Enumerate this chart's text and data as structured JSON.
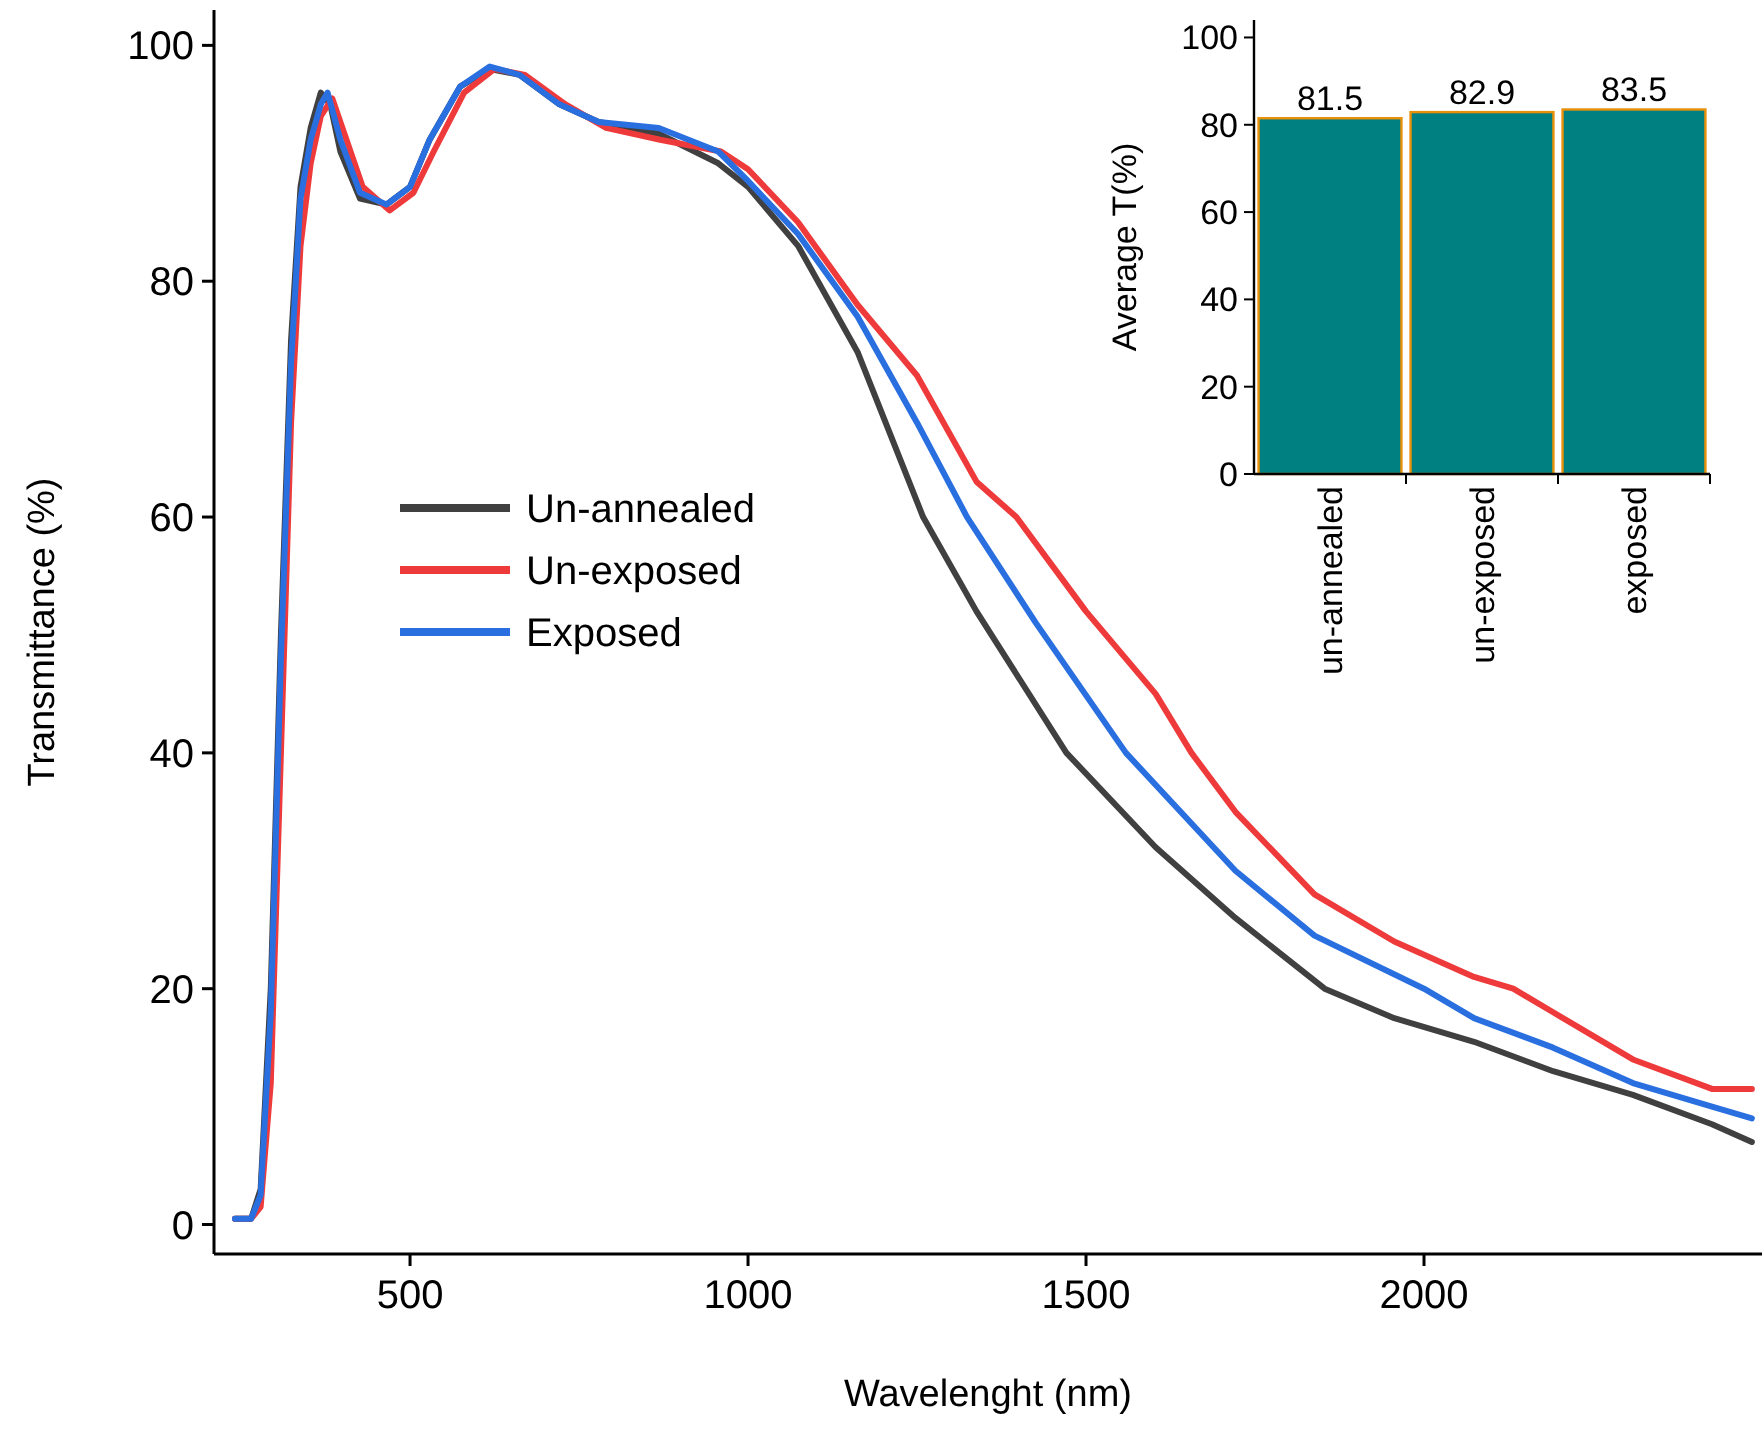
{
  "chart_data": [
    {
      "type": "line",
      "xlabel": "Wavelenght (nm)",
      "ylabel": "Transmittance (%)",
      "xlim": [
        210,
        2500
      ],
      "ylim": [
        -2.5,
        103
      ],
      "xticks": [
        500,
        1000,
        1500,
        2000
      ],
      "yticks": [
        0,
        20,
        40,
        60,
        80,
        100
      ],
      "legend": "left",
      "grid": false,
      "marker": "none",
      "line_style": "solid",
      "series": [
        {
          "name": "Un-annealed",
          "color": "#404040",
          "x": [
            241,
            265,
            279,
            294,
            309,
            324,
            338,
            353,
            368,
            382,
            397,
            426,
            465,
            500,
            529,
            574,
            618,
            662,
            721,
            779,
            868,
            956,
            1000,
            1074,
            1162,
            1259,
            1338,
            1471,
            1603,
            1721,
            1853,
            1956,
            2074,
            2191,
            2309,
            2426,
            2485
          ],
          "values": [
            0.5,
            0.5,
            3,
            20,
            50,
            75,
            88,
            93,
            96,
            95,
            91,
            87,
            86.5,
            88,
            92,
            96.5,
            98,
            97.5,
            95,
            93.5,
            92.5,
            90,
            88,
            83,
            74,
            60,
            52,
            40,
            32,
            26,
            20,
            17.5,
            15.5,
            13,
            11,
            8.5,
            7
          ]
        },
        {
          "name": "Un-exposed",
          "color": "#ee3a3a",
          "x": [
            241,
            265,
            279,
            294,
            309,
            324,
            338,
            353,
            368,
            385,
            400,
            430,
            470,
            505,
            535,
            580,
            625,
            670,
            730,
            790,
            870,
            960,
            1000,
            1074,
            1162,
            1250,
            1338,
            1397,
            1500,
            1603,
            1656,
            1721,
            1838,
            1956,
            2074,
            2132,
            2191,
            2309,
            2426,
            2485
          ],
          "values": [
            0.5,
            0.5,
            1.5,
            12,
            40,
            68,
            83,
            90,
            94,
            95.5,
            93,
            88,
            86,
            87.5,
            91,
            96,
            98,
            97.5,
            95,
            93,
            92,
            91,
            89.5,
            85,
            78,
            72,
            63,
            60,
            52,
            45,
            40,
            35,
            28,
            24,
            21,
            20,
            18,
            14,
            11.5,
            11.5
          ]
        },
        {
          "name": "Exposed",
          "color": "#2a6fe0",
          "x": [
            241,
            265,
            279,
            294,
            309,
            324,
            338,
            353,
            368,
            378,
            397,
            426,
            465,
            500,
            529,
            574,
            618,
            662,
            721,
            779,
            868,
            956,
            1000,
            1074,
            1162,
            1250,
            1324,
            1426,
            1559,
            1721,
            1838,
            2000,
            2074,
            2191,
            2309,
            2426,
            2485
          ],
          "values": [
            0.5,
            0.5,
            2.5,
            18,
            48,
            73,
            87,
            92,
            95,
            96,
            92,
            87.5,
            86.5,
            88,
            92,
            96.5,
            98.2,
            97.5,
            95,
            93.5,
            93,
            91,
            88.5,
            84,
            77,
            68,
            60,
            51,
            40,
            30,
            24.5,
            20,
            17.5,
            15,
            12,
            10,
            9
          ]
        }
      ]
    },
    {
      "type": "bar",
      "ylabel": "Average T(%)",
      "categories": [
        "un-annealed",
        "un-exposed",
        "exposed"
      ],
      "values": [
        81.5,
        82.9,
        83.5
      ],
      "color": "#008080",
      "ylim": [
        0,
        104
      ],
      "yticks": [
        0,
        20,
        40,
        60,
        80,
        100
      ],
      "data_labels": true
    }
  ]
}
